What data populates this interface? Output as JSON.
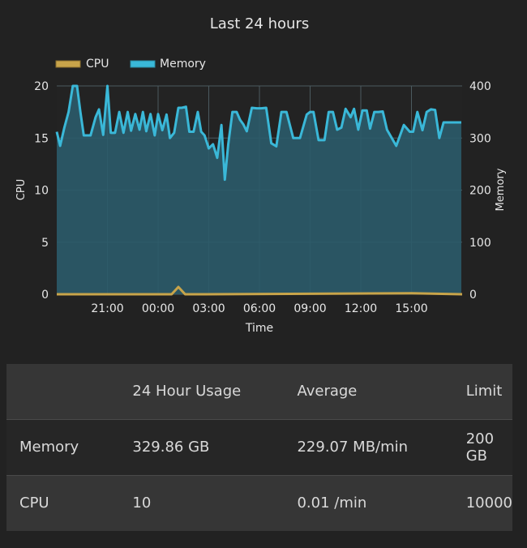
{
  "chart_data": {
    "type": "line",
    "title": "Last 24 hours",
    "xlabel": "Time",
    "ylabel": "CPU",
    "ylabel_right": "Memory",
    "ylim": [
      0,
      20
    ],
    "ylim_right": [
      0,
      400
    ],
    "yticks": [
      "0",
      "5",
      "10",
      "15",
      "20"
    ],
    "yticks_right": [
      "0",
      "100",
      "200",
      "300",
      "400"
    ],
    "x_tick_labels": [
      "21:00",
      "00:00",
      "03:00",
      "06:00",
      "09:00",
      "12:00",
      "15:00"
    ],
    "x_range_hours": [
      18,
      42
    ],
    "x_tick_hours": [
      21,
      24,
      27,
      30,
      33,
      36,
      39
    ],
    "grid": true,
    "legend_position": "top-left",
    "series": [
      {
        "name": "CPU",
        "axis": "left",
        "color": "#c8a44a",
        "x_hours": [
          18,
          22.5,
          24.8,
          25.2,
          25.6,
          26.4,
          39,
          42
        ],
        "values": [
          0,
          0,
          0,
          0.7,
          0,
          0,
          0.1,
          0
        ]
      },
      {
        "name": "Memory",
        "axis": "right",
        "color": "#3ab8d8",
        "fill": "#2b5b6a",
        "x_hours": [
          18.0,
          18.2,
          18.45,
          18.7,
          18.95,
          19.2,
          19.4,
          19.6,
          19.75,
          20.0,
          20.3,
          20.5,
          20.75,
          21.0,
          21.2,
          21.45,
          21.7,
          21.95,
          22.2,
          22.4,
          22.65,
          22.9,
          23.1,
          23.3,
          23.55,
          23.8,
          24.0,
          24.25,
          24.5,
          24.7,
          24.95,
          25.2,
          25.4,
          25.65,
          25.85,
          26.1,
          26.35,
          26.55,
          26.75,
          27.0,
          27.25,
          27.5,
          27.75,
          27.95,
          28.15,
          28.4,
          28.65,
          28.85,
          29.05,
          29.25,
          29.55,
          29.85,
          30.1,
          30.4,
          30.7,
          31.0,
          31.3,
          31.6,
          32.0,
          32.4,
          32.8,
          33.0,
          33.2,
          33.5,
          33.85,
          34.1,
          34.35,
          34.6,
          34.85,
          35.1,
          35.4,
          35.6,
          35.85,
          36.1,
          36.35,
          36.55,
          36.8,
          37.05,
          37.3,
          37.55,
          38.1,
          38.55,
          38.9,
          39.1,
          39.35,
          39.65,
          39.9,
          40.15,
          40.4,
          40.65,
          40.9,
          41.15,
          41.45,
          41.7,
          41.95
        ],
        "values": [
          312,
          285,
          320,
          350,
          400,
          400,
          350,
          305,
          305,
          305,
          340,
          355,
          306,
          400,
          310,
          310,
          350,
          310,
          350,
          314,
          346,
          316,
          350,
          313,
          346,
          305,
          346,
          315,
          345,
          300,
          310,
          358,
          358,
          360,
          312,
          312,
          350,
          312,
          305,
          280,
          288,
          262,
          325,
          220,
          287,
          350,
          350,
          335,
          326,
          313,
          358,
          357,
          357,
          358,
          290,
          284,
          350,
          350,
          300,
          300,
          345,
          350,
          350,
          296,
          296,
          350,
          350,
          316,
          320,
          356,
          340,
          356,
          316,
          353,
          353,
          318,
          350,
          350,
          351,
          316,
          285,
          325,
          312,
          312,
          350,
          315,
          350,
          355,
          354,
          300,
          330,
          330,
          330,
          330,
          330
        ]
      }
    ]
  },
  "table": {
    "headers": [
      "",
      "24 Hour Usage",
      "Average",
      "Limit"
    ],
    "rows": [
      {
        "name": "Memory",
        "usage": "329.86 GB",
        "average": "229.07 MB/min",
        "limit": "200 GB"
      },
      {
        "name": "CPU",
        "usage": "10",
        "average": "0.01 /min",
        "limit": "10000"
      }
    ]
  }
}
